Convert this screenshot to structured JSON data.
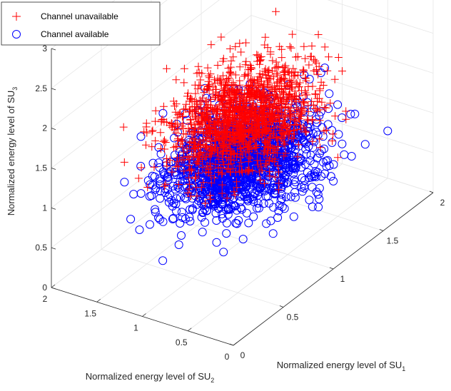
{
  "chart_data": {
    "type": "scatter3d",
    "title": "",
    "axes": {
      "x": {
        "label": "Normalized energy level of SU",
        "subscript": "1",
        "ticks": [
          "0",
          "0.5",
          "1",
          "1.5",
          "2"
        ],
        "lim": [
          0,
          2
        ]
      },
      "y": {
        "label": "Normalized energy level of SU",
        "subscript": "2",
        "ticks": [
          "0",
          "0.5",
          "1",
          "1.5",
          "2"
        ],
        "lim": [
          0,
          2
        ]
      },
      "z": {
        "label": "Normalized energy level of SU",
        "subscript": "3",
        "ticks": [
          "0",
          "0.5",
          "1",
          "1.5",
          "2",
          "2.5",
          "3"
        ],
        "lim": [
          0,
          3
        ]
      }
    },
    "grid": true,
    "legend_position": "top-left",
    "series": [
      {
        "name": "Channel unavailable",
        "marker": "plus",
        "color": "#ff0000",
        "distribution": {
          "center": [
            1.0,
            1.0,
            1.55
          ],
          "spread": [
            0.28,
            0.28,
            0.22
          ],
          "z_range": [
            0.75,
            2.75
          ],
          "count": 1500
        }
      },
      {
        "name": "Channel available",
        "marker": "circle",
        "color": "#0000ff",
        "distribution": {
          "center": [
            1.0,
            1.0,
            1.0
          ],
          "spread": [
            0.28,
            0.28,
            0.2
          ],
          "z_range": [
            0.4,
            1.65
          ],
          "count": 1500
        }
      }
    ]
  }
}
